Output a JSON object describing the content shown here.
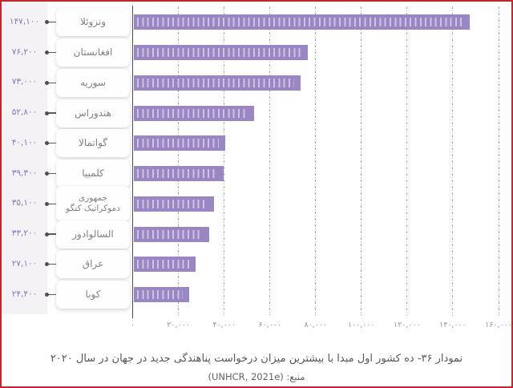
{
  "chart_data": {
    "type": "bar",
    "orientation": "horizontal",
    "categories": [
      "ونزوئلا",
      "افغانستان",
      "سوریه",
      "هندوراس",
      "گواتمالا",
      "کلمبیا",
      "جمهوری دموکراتیک کنگو",
      "السالوادور",
      "عراق",
      "کوبا"
    ],
    "category_lines": [
      [
        "ونزوئلا"
      ],
      [
        "افغانستان"
      ],
      [
        "سوریه"
      ],
      [
        "هندوراس"
      ],
      [
        "گواتمالا"
      ],
      [
        "کلمبیا"
      ],
      [
        "جمهوری",
        "دموکراتیک کنگو"
      ],
      [
        "السالوادور"
      ],
      [
        "عراق"
      ],
      [
        "کوبا"
      ]
    ],
    "values": [
      147100,
      76200,
      73000,
      52800,
      40100,
      39300,
      35100,
      33200,
      27100,
      24400
    ],
    "value_labels": [
      "۱۴۷,۱۰۰",
      "۷۶,۲۰۰",
      "۷۳,۰۰۰",
      "۵۲,۸۰۰",
      "۴۰,۱۰۰",
      "۳۹,۳۰۰",
      "۳۵,۱۰۰",
      "۳۳,۲۰۰",
      "۲۷,۱۰۰",
      "۲۴,۴۰۰"
    ],
    "xlim": [
      0,
      160000
    ],
    "x_ticks": [
      {
        "value": 0,
        "label": "۰"
      },
      {
        "value": 20000,
        "label": "۲۰,۰۰۰"
      },
      {
        "value": 40000,
        "label": "۴۰,۰۰۰"
      },
      {
        "value": 60000,
        "label": "۶۰,۰۰۰"
      },
      {
        "value": 80000,
        "label": "۸۰,۰۰۰"
      },
      {
        "value": 100000,
        "label": "۱۰۰,۰۰۰"
      },
      {
        "value": 120000,
        "label": "۱۲۰,۰۰۰"
      },
      {
        "value": 140000,
        "label": "۱۴۰,۰۰۰"
      },
      {
        "value": 160000,
        "label": "۱۶۰,۰۰۰"
      }
    ],
    "grid": true,
    "legend": "none",
    "title": "نمودار ۳۶- ده کشور اول مبدا با بیشترین میزان درخواست پناهندگی جدید در جهان در سال ۲۰۲۰",
    "source": "منبع: (UNHCR, 2021e)"
  },
  "colors": {
    "bar": "#9b86c4",
    "bar_hatch": "rgba(255,255,255,0.5)",
    "value_text": "#8579c1",
    "axis": "#4f4f4f",
    "grid": "#a8a8a8",
    "card_text": "#828282",
    "tick_text": "#949494",
    "caption_text": "#565656",
    "panel_bg": "#f5f2f5",
    "frame_border": "#c1272d",
    "card_bg": "#ffffff"
  }
}
